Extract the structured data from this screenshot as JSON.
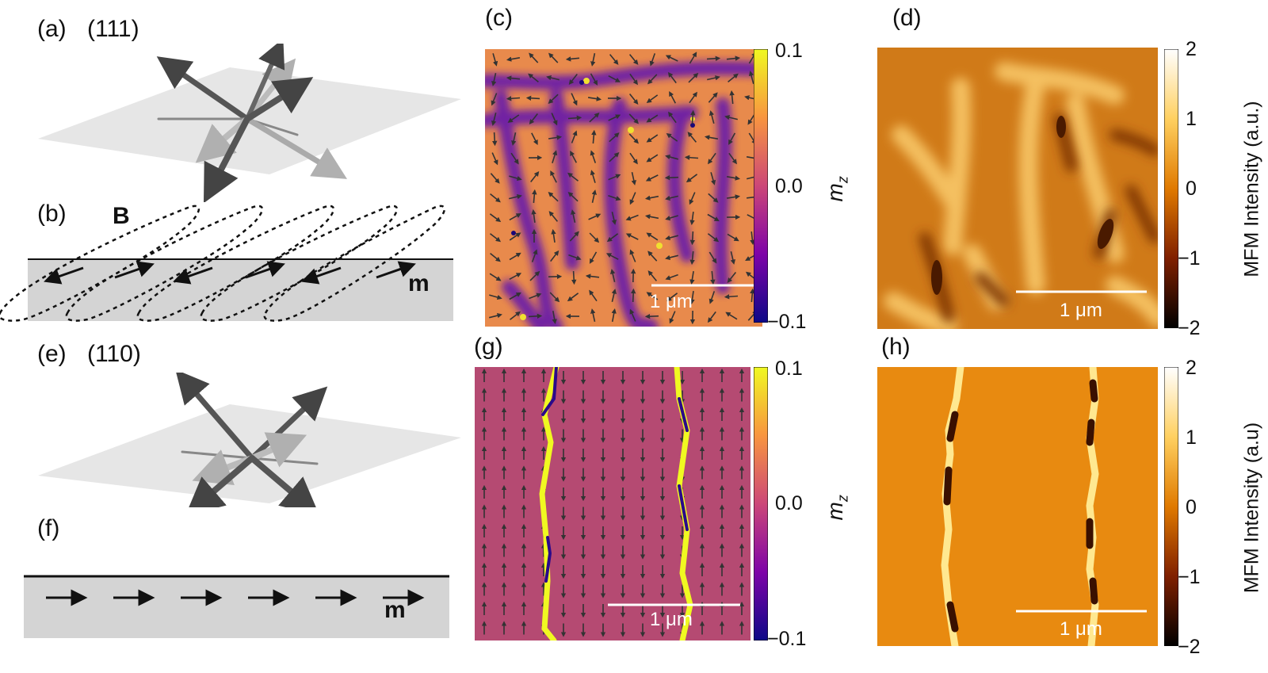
{
  "panels": {
    "a": {
      "label": "(a)",
      "plane": "(111)"
    },
    "b": {
      "label": "(b)",
      "field": "B",
      "moment": "m"
    },
    "c": {
      "label": "(c)"
    },
    "d": {
      "label": "(d)"
    },
    "e": {
      "label": "(e)",
      "plane": "(110)"
    },
    "f": {
      "label": "(f)",
      "moment": "m"
    },
    "g": {
      "label": "(g)"
    },
    "h": {
      "label": "(h)"
    }
  },
  "colorbar_c": {
    "ticks": [
      "0.1",
      "0.0",
      "−0.1"
    ],
    "title_main": "m",
    "title_sub": "z"
  },
  "colorbar_g": {
    "ticks": [
      "0.1",
      "0.0",
      "−0.1"
    ],
    "title_main": "m",
    "title_sub": "z"
  },
  "colorbar_d": {
    "ticks": [
      "2",
      "1",
      "0",
      "−1",
      "−2"
    ],
    "title": "MFM Intensity (a.u.)"
  },
  "colorbar_h": {
    "ticks": [
      "2",
      "1",
      "0",
      "−1",
      "−2"
    ],
    "title": "MFM Intensity (a.u)"
  },
  "scalebars": {
    "c": "1 μm",
    "d": "1 μm",
    "g": "1 μm",
    "h": "1 μm"
  },
  "colors": {
    "plasma_low": "#0d0887",
    "plasma_mid": "#cc4778",
    "plasma_high": "#f0f921",
    "afm_low": "#000000",
    "afm_mid": "#e07a00",
    "afm_high": "#ffffff",
    "film": "#d4d4d4"
  }
}
